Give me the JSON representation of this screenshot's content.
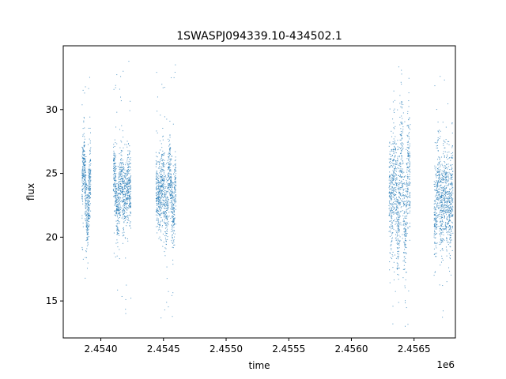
{
  "chart_data": {
    "type": "scatter",
    "title": "1SWASPJ094339.10-434502.1",
    "xlabel": "time",
    "ylabel": "flux",
    "x_offset_label": "1e6",
    "xlim": [
      2453700,
      2456830
    ],
    "ylim": [
      12.1,
      35.0
    ],
    "x_ticks": [
      2.454,
      2.4545,
      2.455,
      2.4555,
      2.456,
      2.4565
    ],
    "x_tick_labels": [
      "2.4540",
      "2.4545",
      "2.4550",
      "2.4555",
      "2.4560",
      "2.4565"
    ],
    "y_ticks": [
      15,
      20,
      25,
      30
    ],
    "y_tick_labels": [
      "15",
      "20",
      "25",
      "30"
    ],
    "grid": false,
    "marker_color": "#1f77b4",
    "segments": [
      {
        "x_start": 2453850,
        "x_end": 2453920,
        "y_center": 23.5,
        "amplitude": 2.5,
        "scatter": 1.3,
        "outlier_min": 16.0,
        "outlier_max": 33.5
      },
      {
        "x_start": 2454100,
        "x_end": 2454240,
        "y_center": 23.5,
        "amplitude": 2.0,
        "scatter": 1.4,
        "outlier_min": 13.8,
        "outlier_max": 33.8
      },
      {
        "x_start": 2454440,
        "x_end": 2454600,
        "y_center": 23.5,
        "amplitude": 2.0,
        "scatter": 1.4,
        "outlier_min": 13.3,
        "outlier_max": 33.8
      },
      {
        "x_start": 2456300,
        "x_end": 2456470,
        "y_center": 23.5,
        "amplitude": 3.5,
        "scatter": 2.4,
        "outlier_min": 13.0,
        "outlier_max": 33.5
      },
      {
        "x_start": 2456660,
        "x_end": 2456810,
        "y_center": 23.0,
        "amplitude": 2.5,
        "scatter": 1.8,
        "outlier_min": 13.2,
        "outlier_max": 33.2
      }
    ]
  }
}
